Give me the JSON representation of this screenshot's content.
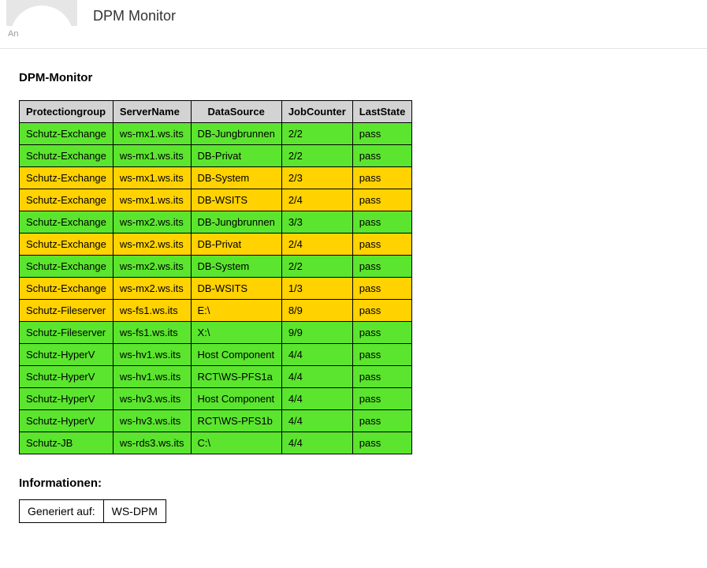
{
  "header": {
    "subject": "DPM Monitor",
    "recipient_label": "An"
  },
  "colors": {
    "header_bg": "#d3d3d3",
    "green": "#5be52e",
    "yellow": "#ffd200",
    "border": "#000000"
  },
  "main": {
    "title": "DPM-Monitor"
  },
  "table": {
    "columns": [
      "Protectiongroup",
      "ServerName",
      "DataSource",
      "JobCounter",
      "LastState"
    ],
    "rows": [
      {
        "group": "Schutz-Exchange",
        "server": "ws-mx1.ws.its",
        "ds": "DB-Jungbrunnen",
        "jc": "2/2",
        "state": "pass",
        "color": "green"
      },
      {
        "group": "Schutz-Exchange",
        "server": "ws-mx1.ws.its",
        "ds": "DB-Privat",
        "jc": "2/2",
        "state": "pass",
        "color": "green"
      },
      {
        "group": "Schutz-Exchange",
        "server": "ws-mx1.ws.its",
        "ds": "DB-System",
        "jc": "2/3",
        "state": "pass",
        "color": "yellow"
      },
      {
        "group": "Schutz-Exchange",
        "server": "ws-mx1.ws.its",
        "ds": "DB-WSITS",
        "jc": "2/4",
        "state": "pass",
        "color": "yellow"
      },
      {
        "group": "Schutz-Exchange",
        "server": "ws-mx2.ws.its",
        "ds": "DB-Jungbrunnen",
        "jc": "3/3",
        "state": "pass",
        "color": "green"
      },
      {
        "group": "Schutz-Exchange",
        "server": "ws-mx2.ws.its",
        "ds": "DB-Privat",
        "jc": "2/4",
        "state": "pass",
        "color": "yellow"
      },
      {
        "group": "Schutz-Exchange",
        "server": "ws-mx2.ws.its",
        "ds": "DB-System",
        "jc": "2/2",
        "state": "pass",
        "color": "green"
      },
      {
        "group": "Schutz-Exchange",
        "server": "ws-mx2.ws.its",
        "ds": "DB-WSITS",
        "jc": "1/3",
        "state": "pass",
        "color": "yellow"
      },
      {
        "group": "Schutz-Fileserver",
        "server": "ws-fs1.ws.its",
        "ds": "E:\\",
        "jc": "8/9",
        "state": "pass",
        "color": "yellow"
      },
      {
        "group": "Schutz-Fileserver",
        "server": "ws-fs1.ws.its",
        "ds": "X:\\",
        "jc": "9/9",
        "state": "pass",
        "color": "green"
      },
      {
        "group": "Schutz-HyperV",
        "server": "ws-hv1.ws.its",
        "ds": "Host Component",
        "jc": "4/4",
        "state": "pass",
        "color": "green"
      },
      {
        "group": "Schutz-HyperV",
        "server": "ws-hv1.ws.its",
        "ds": "RCT\\WS-PFS1a",
        "jc": "4/4",
        "state": "pass",
        "color": "green"
      },
      {
        "group": "Schutz-HyperV",
        "server": "ws-hv3.ws.its",
        "ds": "Host Component",
        "jc": "4/4",
        "state": "pass",
        "color": "green"
      },
      {
        "group": "Schutz-HyperV",
        "server": "ws-hv3.ws.its",
        "ds": "RCT\\WS-PFS1b",
        "jc": "4/4",
        "state": "pass",
        "color": "green"
      },
      {
        "group": "Schutz-JB",
        "server": "ws-rds3.ws.its",
        "ds": "C:\\",
        "jc": "4/4",
        "state": "pass",
        "color": "green"
      }
    ]
  },
  "info": {
    "title": "Informationen:",
    "label_generated_on": "Generiert auf:",
    "generated_on": "WS-DPM"
  }
}
